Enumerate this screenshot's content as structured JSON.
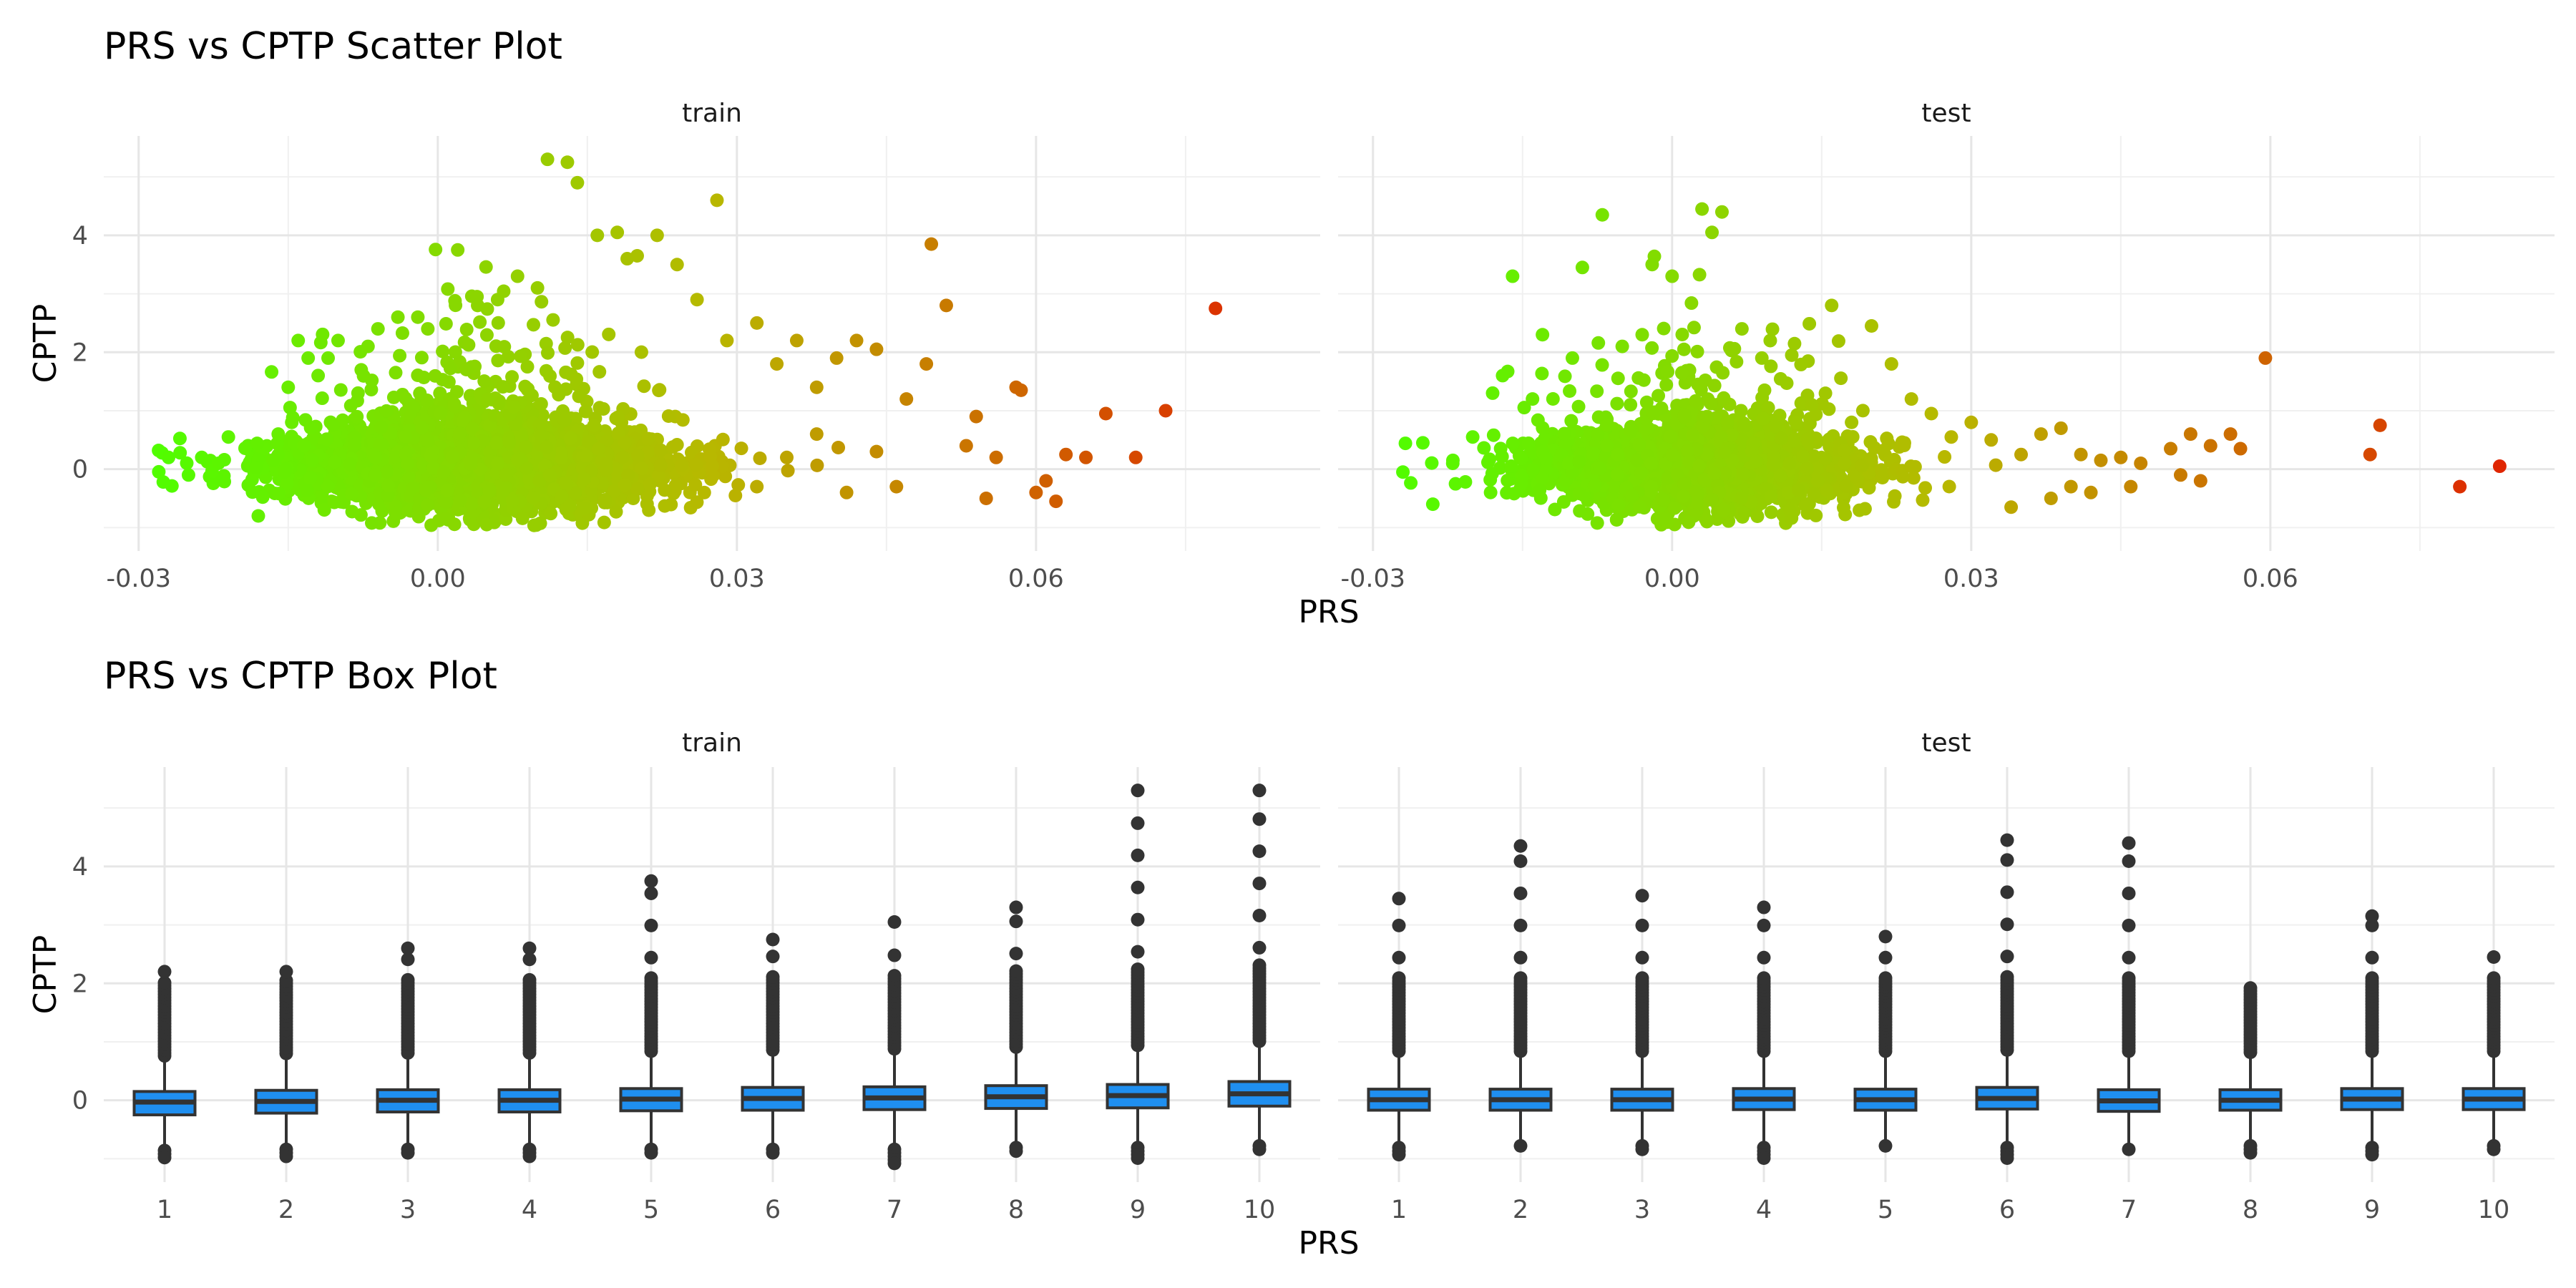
{
  "scatter_title": "PRS vs CPTP Scatter Plot",
  "box_title": "PRS vs CPTP Box Plot",
  "panels": {
    "train": "train",
    "test": "test"
  },
  "xlabel": "PRS",
  "ylabel": "CPTP",
  "chart_data": [
    {
      "type": "scatter",
      "title": "PRS vs CPTP Scatter Plot",
      "xlabel": "PRS",
      "ylabel": "CPTP",
      "xlim": [
        -0.0335,
        0.0885
      ],
      "ylim": [
        -1.4,
        5.7
      ],
      "x_ticks": [
        "-0.03",
        "0.00",
        "0.03",
        "0.06"
      ],
      "x_tick_values": [
        -0.03,
        0.0,
        0.03,
        0.06
      ],
      "y_ticks": [
        "0",
        "2",
        "4"
      ],
      "y_tick_values": [
        0,
        2,
        4
      ],
      "color_scale": {
        "low": "#4dff00",
        "mid": "#b8b800",
        "high": "#e02000",
        "domain": [
          -0.03,
          0.085
        ]
      },
      "facets": [
        {
          "name": "train",
          "points": [
            [
              -0.028,
              0.32
            ],
            [
              -0.027,
              0.2
            ],
            [
              -0.025,
              -0.1
            ],
            [
              -0.022,
              0.1
            ],
            [
              -0.021,
              0.55
            ],
            [
              -0.018,
              -0.8
            ],
            [
              -0.016,
              0.6
            ],
            [
              -0.015,
              1.4
            ],
            [
              -0.014,
              2.2
            ],
            [
              -0.013,
              1.9
            ],
            [
              -0.012,
              1.6
            ],
            [
              -0.011,
              1.9
            ],
            [
              -0.01,
              2.2
            ],
            [
              -0.008,
              1.3
            ],
            [
              -0.007,
              2.1
            ],
            [
              -0.006,
              2.4
            ],
            [
              -0.004,
              2.6
            ],
            [
              -0.002,
              2.6
            ],
            [
              -0.001,
              2.4
            ],
            [
              0.002,
              3.75
            ],
            [
              0.004,
              2.8
            ],
            [
              0.006,
              2.9
            ],
            [
              0.008,
              3.3
            ],
            [
              0.01,
              3.1
            ],
            [
              0.011,
              5.3
            ],
            [
              0.013,
              5.25
            ],
            [
              0.014,
              4.9
            ],
            [
              0.016,
              4.0
            ],
            [
              0.018,
              4.05
            ],
            [
              0.019,
              3.6
            ],
            [
              0.02,
              3.65
            ],
            [
              0.022,
              4.0
            ],
            [
              0.024,
              3.5
            ],
            [
              0.026,
              2.9
            ],
            [
              0.028,
              4.6
            ],
            [
              0.029,
              2.2
            ],
            [
              0.032,
              2.5
            ],
            [
              0.034,
              1.8
            ],
            [
              0.036,
              2.2
            ],
            [
              0.038,
              1.4
            ],
            [
              0.04,
              1.9
            ],
            [
              0.042,
              2.2
            ],
            [
              0.044,
              2.05
            ],
            [
              0.047,
              1.2
            ],
            [
              0.049,
              1.8
            ],
            [
              0.0495,
              3.85
            ],
            [
              0.051,
              2.8
            ],
            [
              0.054,
              0.9
            ],
            [
              0.056,
              0.2
            ],
            [
              0.058,
              1.4
            ],
            [
              0.0585,
              1.35
            ],
            [
              0.06,
              -0.4
            ],
            [
              0.062,
              -0.55
            ],
            [
              0.063,
              0.25
            ],
            [
              0.065,
              0.2
            ],
            [
              0.067,
              0.95
            ],
            [
              0.07,
              0.2
            ],
            [
              0.073,
              1.0
            ],
            [
              0.078,
              2.75
            ],
            [
              0.061,
              -0.2
            ],
            [
              0.055,
              -0.5
            ],
            [
              0.053,
              0.4
            ],
            [
              0.046,
              -0.3
            ],
            [
              0.044,
              0.3
            ],
            [
              0.041,
              -0.4
            ],
            [
              0.038,
              0.6
            ],
            [
              0.035,
              0.2
            ],
            [
              0.032,
              -0.3
            ]
          ]
        },
        {
          "name": "test",
          "points": [
            [
              -0.027,
              -0.05
            ],
            [
              -0.025,
              0.45
            ],
            [
              -0.024,
              -0.6
            ],
            [
              -0.022,
              0.1
            ],
            [
              -0.02,
              0.55
            ],
            [
              -0.018,
              1.3
            ],
            [
              -0.017,
              1.6
            ],
            [
              -0.016,
              3.3
            ],
            [
              -0.014,
              1.2
            ],
            [
              -0.013,
              2.3
            ],
            [
              -0.01,
              1.9
            ],
            [
              -0.009,
              3.45
            ],
            [
              -0.007,
              4.35
            ],
            [
              -0.005,
              2.1
            ],
            [
              -0.003,
              2.3
            ],
            [
              -0.002,
              3.5
            ],
            [
              0.0,
              3.3
            ],
            [
              0.003,
              4.45
            ],
            [
              0.004,
              4.05
            ],
            [
              0.005,
              4.4
            ],
            [
              0.007,
              2.4
            ],
            [
              0.009,
              1.9
            ],
            [
              0.012,
              1.95
            ],
            [
              0.014,
              1.1
            ],
            [
              0.016,
              2.8
            ],
            [
              0.018,
              0.8
            ],
            [
              0.02,
              2.45
            ],
            [
              0.022,
              1.8
            ],
            [
              0.024,
              1.2
            ],
            [
              0.026,
              0.95
            ],
            [
              0.028,
              0.55
            ],
            [
              0.03,
              0.8
            ],
            [
              0.032,
              0.5
            ],
            [
              0.035,
              0.25
            ],
            [
              0.037,
              0.6
            ],
            [
              0.039,
              0.7
            ],
            [
              0.04,
              -0.3
            ],
            [
              0.041,
              0.25
            ],
            [
              0.043,
              0.15
            ],
            [
              0.045,
              0.2
            ],
            [
              0.047,
              0.1
            ],
            [
              0.05,
              0.35
            ],
            [
              0.052,
              0.6
            ],
            [
              0.054,
              0.4
            ],
            [
              0.056,
              0.6
            ],
            [
              0.057,
              0.35
            ],
            [
              0.0595,
              1.9
            ],
            [
              0.07,
              0.25
            ],
            [
              0.071,
              0.75
            ],
            [
              0.079,
              -0.3
            ],
            [
              0.083,
              0.05
            ],
            [
              0.038,
              -0.5
            ],
            [
              0.034,
              -0.65
            ],
            [
              0.042,
              -0.4
            ],
            [
              0.046,
              -0.3
            ],
            [
              0.051,
              -0.1
            ],
            [
              0.053,
              -0.2
            ]
          ]
        }
      ]
    },
    {
      "type": "box",
      "title": "PRS vs CPTP Box Plot",
      "xlabel": "PRS",
      "ylabel": "CPTP",
      "categories": [
        "1",
        "2",
        "3",
        "4",
        "5",
        "6",
        "7",
        "8",
        "9",
        "10"
      ],
      "ylim": [
        -1.4,
        5.7
      ],
      "y_ticks": [
        "0",
        "2",
        "4"
      ],
      "y_tick_values": [
        0,
        2,
        4
      ],
      "box_color": "#1f8ff0",
      "facets": [
        {
          "name": "train",
          "boxes": [
            {
              "q1": -0.25,
              "median": -0.03,
              "q3": 0.15,
              "whisker_low": -0.8,
              "whisker_high": 0.7,
              "outliers_high_max": 2.2,
              "outliers_low_min": -1.0
            },
            {
              "q1": -0.22,
              "median": -0.02,
              "q3": 0.17,
              "whisker_low": -0.78,
              "whisker_high": 0.74,
              "outliers_high_max": 2.2,
              "outliers_low_min": -1.0
            },
            {
              "q1": -0.2,
              "median": 0.0,
              "q3": 0.18,
              "whisker_low": -0.78,
              "whisker_high": 0.75,
              "outliers_high_max": 2.6,
              "outliers_low_min": -0.95
            },
            {
              "q1": -0.2,
              "median": 0.0,
              "q3": 0.18,
              "whisker_low": -0.78,
              "whisker_high": 0.75,
              "outliers_high_max": 2.6,
              "outliers_low_min": -1.0
            },
            {
              "q1": -0.18,
              "median": 0.02,
              "q3": 0.2,
              "whisker_low": -0.78,
              "whisker_high": 0.78,
              "outliers_high_max": 3.75,
              "outliers_low_min": -0.95
            },
            {
              "q1": -0.17,
              "median": 0.03,
              "q3": 0.22,
              "whisker_low": -0.78,
              "whisker_high": 0.8,
              "outliers_high_max": 2.75,
              "outliers_low_min": -0.95
            },
            {
              "q1": -0.16,
              "median": 0.04,
              "q3": 0.23,
              "whisker_low": -0.78,
              "whisker_high": 0.82,
              "outliers_high_max": 3.05,
              "outliers_low_min": -1.1
            },
            {
              "q1": -0.14,
              "median": 0.06,
              "q3": 0.25,
              "whisker_low": -0.75,
              "whisker_high": 0.85,
              "outliers_high_max": 3.3,
              "outliers_low_min": -0.9
            },
            {
              "q1": -0.13,
              "median": 0.08,
              "q3": 0.27,
              "whisker_low": -0.75,
              "whisker_high": 0.88,
              "outliers_high_max": 5.3,
              "outliers_low_min": -1.0
            },
            {
              "q1": -0.1,
              "median": 0.11,
              "q3": 0.32,
              "whisker_low": -0.72,
              "whisker_high": 0.95,
              "outliers_high_max": 5.3,
              "outliers_low_min": -0.85
            }
          ]
        },
        {
          "name": "test",
          "boxes": [
            {
              "q1": -0.17,
              "median": 0.01,
              "q3": 0.19,
              "whisker_low": -0.75,
              "whisker_high": 0.78,
              "outliers_high_max": 3.45,
              "outliers_low_min": -0.95
            },
            {
              "q1": -0.17,
              "median": 0.01,
              "q3": 0.19,
              "whisker_low": -0.72,
              "whisker_high": 0.78,
              "outliers_high_max": 4.35,
              "outliers_low_min": -0.8
            },
            {
              "q1": -0.17,
              "median": 0.01,
              "q3": 0.19,
              "whisker_low": -0.72,
              "whisker_high": 0.78,
              "outliers_high_max": 3.5,
              "outliers_low_min": -0.85
            },
            {
              "q1": -0.16,
              "median": 0.02,
              "q3": 0.2,
              "whisker_low": -0.75,
              "whisker_high": 0.78,
              "outliers_high_max": 3.3,
              "outliers_low_min": -1.0
            },
            {
              "q1": -0.17,
              "median": 0.01,
              "q3": 0.19,
              "whisker_low": -0.72,
              "whisker_high": 0.78,
              "outliers_high_max": 2.8,
              "outliers_low_min": -0.8
            },
            {
              "q1": -0.15,
              "median": 0.03,
              "q3": 0.22,
              "whisker_low": -0.75,
              "whisker_high": 0.8,
              "outliers_high_max": 4.45,
              "outliers_low_min": -1.0
            },
            {
              "q1": -0.19,
              "median": -0.01,
              "q3": 0.18,
              "whisker_low": -0.78,
              "whisker_high": 0.78,
              "outliers_high_max": 4.4,
              "outliers_low_min": -0.9
            },
            {
              "q1": -0.17,
              "median": 0.0,
              "q3": 0.18,
              "whisker_low": -0.72,
              "whisker_high": 0.76,
              "outliers_high_max": 1.95,
              "outliers_low_min": -0.95
            },
            {
              "q1": -0.16,
              "median": 0.02,
              "q3": 0.2,
              "whisker_low": -0.75,
              "whisker_high": 0.78,
              "outliers_high_max": 3.15,
              "outliers_low_min": -0.95
            },
            {
              "q1": -0.16,
              "median": 0.02,
              "q3": 0.2,
              "whisker_low": -0.72,
              "whisker_high": 0.78,
              "outliers_high_max": 2.45,
              "outliers_low_min": -0.85
            }
          ]
        }
      ]
    }
  ]
}
